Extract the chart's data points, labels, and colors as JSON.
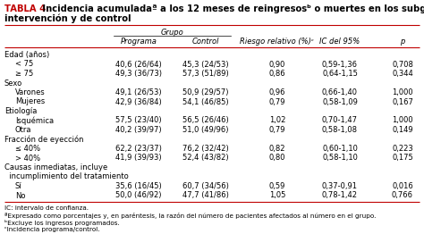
{
  "title_label": "TABLA 4.",
  "title_rest": " Incidencia acumuladaª a los 12 meses de reingresosᵇ o muertes en los subgrupos de los grupos de intervención y de control",
  "grupo_header": "Grupo",
  "col_headers_line1": [
    "",
    "Programa",
    "Control",
    "Riesgo relativo (%)ᶜ",
    "IC del 95%",
    "p"
  ],
  "rows": [
    {
      "label": "Edad (años)",
      "indent": false,
      "data": [
        "",
        "",
        "",
        "",
        ""
      ]
    },
    {
      "label": "< 75",
      "indent": true,
      "data": [
        "40,6 (26/64)",
        "45,3 (24/53)",
        "0,90",
        "0,59-1,36",
        "0,708"
      ]
    },
    {
      "label": "≥ 75",
      "indent": true,
      "data": [
        "49,3 (36/73)",
        "57,3 (51/89)",
        "0,86",
        "0,64-1,15",
        "0,344"
      ]
    },
    {
      "label": "Sexo",
      "indent": false,
      "data": [
        "",
        "",
        "",
        "",
        ""
      ]
    },
    {
      "label": "Varones",
      "indent": true,
      "data": [
        "49,1 (26/53)",
        "50,9 (29/57)",
        "0,96",
        "0,66-1,40",
        "1,000"
      ]
    },
    {
      "label": "Mujeres",
      "indent": true,
      "data": [
        "42,9 (36/84)",
        "54,1 (46/85)",
        "0,79",
        "0,58-1,09",
        "0,167"
      ]
    },
    {
      "label": "Etiología",
      "indent": false,
      "data": [
        "",
        "",
        "",
        "",
        ""
      ]
    },
    {
      "label": "Isquémica",
      "indent": true,
      "data": [
        "57,5 (23/40)",
        "56,5 (26/46)",
        "1,02",
        "0,70-1,47",
        "1,000"
      ]
    },
    {
      "label": "Otra",
      "indent": true,
      "data": [
        "40,2 (39/97)",
        "51,0 (49/96)",
        "0,79",
        "0,58-1,08",
        "0,149"
      ]
    },
    {
      "label": "Fracción de eyección",
      "indent": false,
      "data": [
        "",
        "",
        "",
        "",
        ""
      ]
    },
    {
      "label": "≤ 40%",
      "indent": true,
      "data": [
        "62,2 (23/37)",
        "76,2 (32/42)",
        "0,82",
        "0,60-1,10",
        "0,223"
      ]
    },
    {
      "label": "> 40%",
      "indent": true,
      "data": [
        "41,9 (39/93)",
        "52,4 (43/82)",
        "0,80",
        "0,58-1,10",
        "0,175"
      ]
    },
    {
      "label": "Causas inmediatas, incluye",
      "indent": false,
      "data": [
        "",
        "",
        "",
        "",
        ""
      ]
    },
    {
      "label": "  incumplimiento del tratamiento",
      "indent": false,
      "data": [
        "",
        "",
        "",
        "",
        ""
      ]
    },
    {
      "label": "Sí",
      "indent": true,
      "data": [
        "35,6 (16/45)",
        "60,7 (34/56)",
        "0,59",
        "0,37-0,91",
        "0,016"
      ]
    },
    {
      "label": "No",
      "indent": true,
      "data": [
        "50,0 (46/92)",
        "47,7 (41/86)",
        "1,05",
        "0,78-1,42",
        "0,766"
      ]
    }
  ],
  "footnotes": [
    "IC: intervalo de confianza.",
    "ªExpresado como porcentajes y, en paréntesis, la razón del número de pacientes afectados al número en el grupo.",
    "ᵇExcluye los ingresos programados.",
    "ᶜIncidencia programa/control."
  ],
  "bg_color": "#ffffff",
  "title_color": "#c00000",
  "line_color": "#c00000",
  "font_size": 6.0,
  "title_font_size": 7.2
}
